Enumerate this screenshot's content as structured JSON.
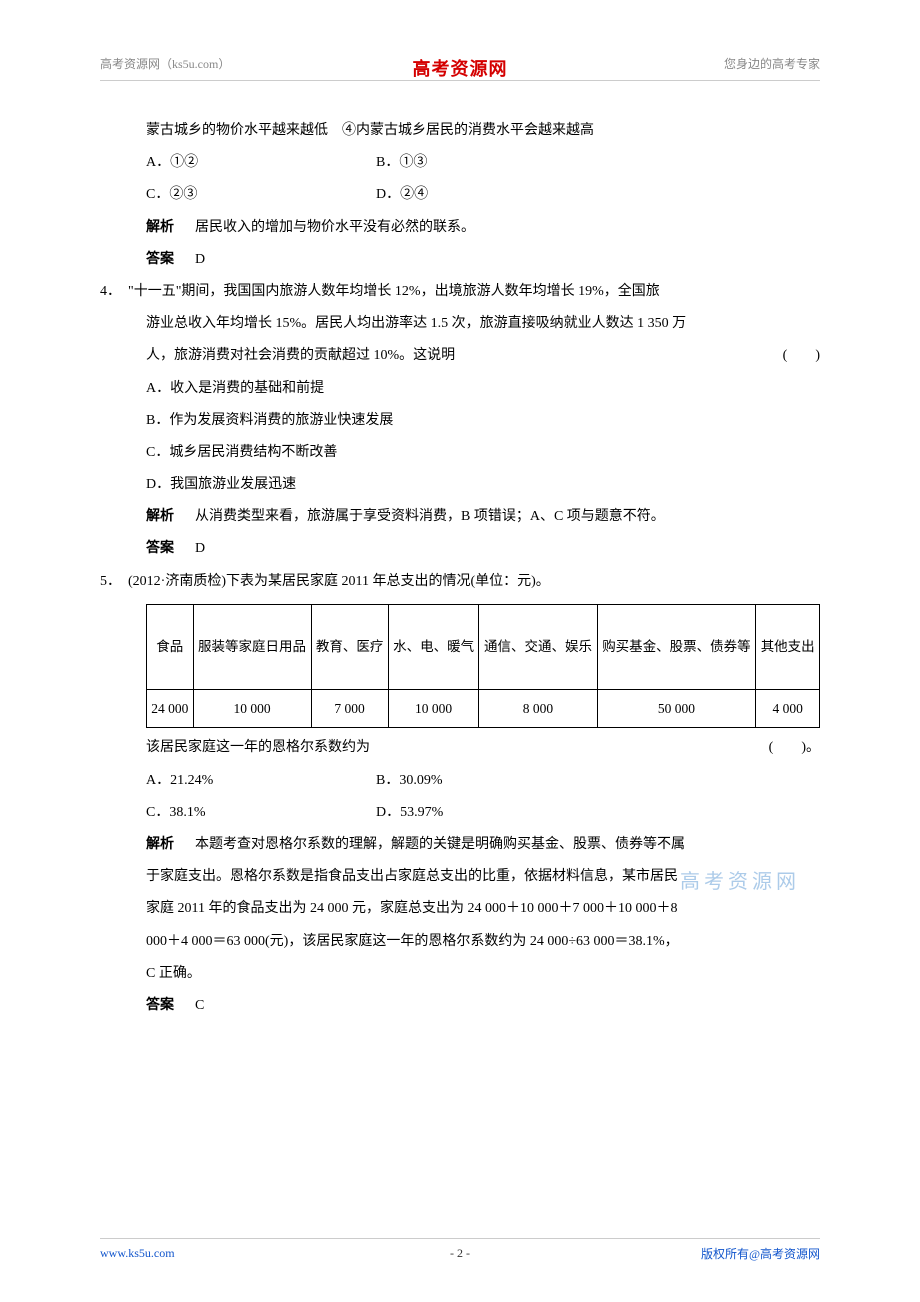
{
  "header": {
    "left": "高考资源网（ks5u.com）",
    "center": "高考资源网",
    "right": "您身边的高考专家"
  },
  "watermark": "高考资源网",
  "q3_tail": {
    "line1": "蒙古城乡的物价水平越来越低　④内蒙古城乡居民的消费水平会越来越高",
    "optA": "A．①②",
    "optB": "B．①③",
    "optC": "C．②③",
    "optD": "D．②④",
    "explain_label": "解析",
    "explain_text": "居民收入的增加与物价水平没有必然的联系。",
    "answer_label": "答案",
    "answer_text": "D"
  },
  "q4": {
    "num": "4．",
    "stem1": "\"十一五\"期间，我国国内旅游人数年均增长 12%，出境旅游人数年均增长 19%，全国旅",
    "stem2": "游业总收入年均增长 15%。居民人均出游率达 1.5 次，旅游直接吸纳就业人数达 1 350 万",
    "stem3": "人，旅游消费对社会消费的贡献超过 10%。这说明",
    "paren": "(　　)",
    "optA": "A．收入是消费的基础和前提",
    "optB": "B．作为发展资料消费的旅游业快速发展",
    "optC": "C．城乡居民消费结构不断改善",
    "optD": "D．我国旅游业发展迅速",
    "explain_label": "解析",
    "explain_text": "从消费类型来看，旅游属于享受资料消费，B 项错误；A、C 项与题意不符。",
    "answer_label": "答案",
    "answer_text": "D"
  },
  "q5": {
    "num": "5．",
    "stem": "(2012·济南质检)下表为某居民家庭 2011 年总支出的情况(单位：元)。",
    "table": {
      "columns": [
        "食品",
        "服装等家庭日用品",
        "教育、医疗",
        "水、电、暖气",
        "通信、交通、娱乐",
        "购买基金、股票、债券等",
        "其他支出"
      ],
      "rows": [
        [
          "24 000",
          "10 000",
          "7 000",
          "10 000",
          "8 000",
          "50 000",
          "4 000"
        ]
      ]
    },
    "after_table_line": "该居民家庭这一年的恩格尔系数约为",
    "paren": "(　　)。",
    "optA": "A．21.24%",
    "optB": "B．30.09%",
    "optC": "C．38.1%",
    "optD": "D．53.97%",
    "explain_label": "解析",
    "explain_p1": "本题考查对恩格尔系数的理解，解题的关键是明确购买基金、股票、债券等不属",
    "explain_p2": "于家庭支出。恩格尔系数是指食品支出占家庭总支出的比重，依据材料信息，某市居民",
    "explain_p3": "家庭 2011 年的食品支出为 24 000 元，家庭总支出为 24 000＋10 000＋7 000＋10 000＋8",
    "explain_p4": "000＋4 000＝63 000(元)，该居民家庭这一年的恩格尔系数约为 24 000÷63 000＝38.1%，",
    "explain_p5": "C 正确。",
    "answer_label": "答案",
    "answer_text": "C"
  },
  "footer": {
    "left": "www.ks5u.com",
    "center": "- 2 -",
    "right": "版权所有@高考资源网"
  }
}
